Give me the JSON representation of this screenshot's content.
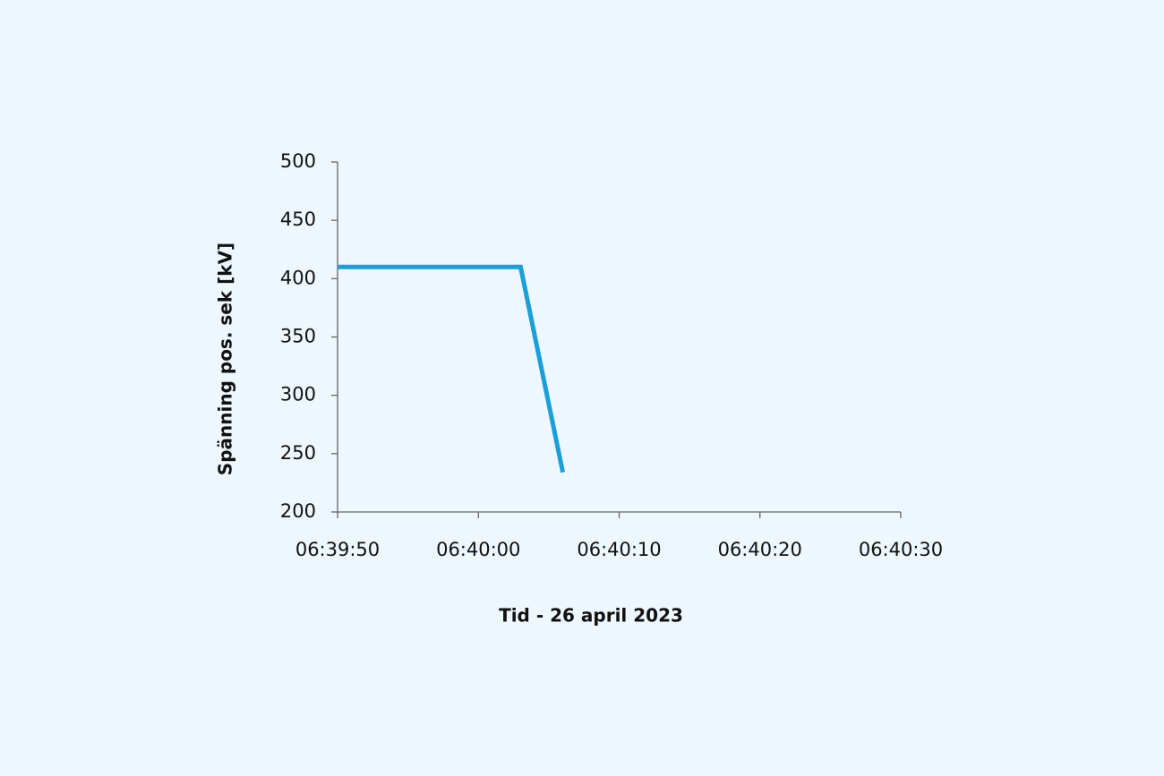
{
  "chart_data": {
    "type": "line",
    "y_label": "Spänning pos. sek [kV]",
    "x_label": "Tid - 26 april 2023",
    "x": [
      "06:39:50",
      "06:40:03",
      "06:40:06"
    ],
    "values": [
      410,
      410,
      234
    ],
    "color": "#1a9fd8",
    "xlim": [
      "06:39:50",
      "06:40:30"
    ],
    "xticks": [
      "06:39:50",
      "06:40:00",
      "06:40:10",
      "06:40:20",
      "06:40:30"
    ],
    "ylim": [
      200,
      500
    ],
    "yticks": [
      200,
      250,
      300,
      350,
      400,
      450,
      500
    ],
    "grid": false
  }
}
